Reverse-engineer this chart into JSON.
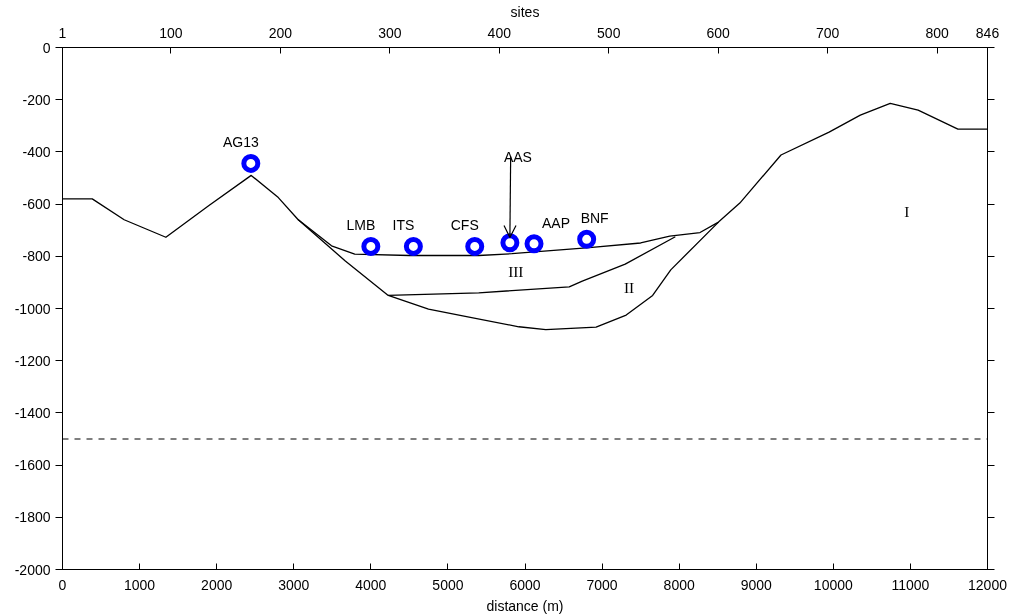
{
  "chart_data": {
    "type": "line",
    "xlabel": "distance (m)",
    "x2label": "sites",
    "xlim": [
      0,
      12000
    ],
    "xticks": [
      0,
      1000,
      2000,
      3000,
      4000,
      5000,
      6000,
      7000,
      8000,
      9000,
      10000,
      11000,
      12000
    ],
    "x2lim": [
      1,
      846
    ],
    "x2ticks": [
      1,
      100,
      200,
      300,
      400,
      500,
      600,
      700,
      800,
      846
    ],
    "ylim": [
      -2000,
      0
    ],
    "yticks": [
      -2000,
      -1800,
      -1600,
      -1400,
      -1200,
      -1000,
      -800,
      -600,
      -400,
      -200,
      0
    ],
    "grid": false,
    "line_style": "solid",
    "series": [
      {
        "color": "#000000",
        "x": [
          0,
          386,
          800,
          1341,
          1900,
          2448,
          2800,
          3055,
          3490,
          3791,
          4500,
          5400,
          5830,
          6834,
          7500,
          7878,
          8270,
          8510,
          8787,
          9321,
          9945,
          10350,
          10738,
          11100,
          11616,
          12000
        ],
        "values": [
          -580,
          -580,
          -660,
          -727,
          -605,
          -490,
          -575,
          -659,
          -760,
          -792,
          -797,
          -797,
          -790,
          -767,
          -749,
          -723,
          -709,
          -669,
          -596,
          -412,
          -324,
          -259,
          -214,
          -240,
          -313,
          -313
        ]
      },
      {
        "color": "#000000",
        "x": [
          3055,
          3665,
          4226,
          4748,
          5225,
          5920,
          6270,
          6922,
          7313,
          7656,
          7891,
          8510
        ],
        "values": [
          -659,
          -817,
          -950,
          -1002,
          -1030,
          -1070,
          -1081,
          -1071,
          -1025,
          -950,
          -852,
          -669
        ]
      },
      {
        "color": "#000000",
        "x": [
          4226,
          5400,
          6574,
          6743,
          7300,
          7950
        ],
        "values": [
          -950,
          -940,
          -917,
          -895,
          -830,
          -725
        ]
      },
      {
        "type": "scatter",
        "marker": "circle",
        "color": "#0000ff",
        "x": [
          2443,
          4000,
          4552,
          5348,
          5804,
          6117,
          6800
        ],
        "values": [
          -444,
          -762,
          -762,
          -762,
          -748,
          -752,
          -735
        ]
      }
    ],
    "ref_lines": [
      {
        "axis": "y",
        "value": -1500,
        "line_style": "dashed",
        "color": "#000000"
      }
    ],
    "annotations": [
      {
        "text": "AG13",
        "x": 2443,
        "y": -444
      },
      {
        "text": "LMB",
        "x": 4000,
        "y": -762
      },
      {
        "text": "ITS",
        "x": 4552,
        "y": -762
      },
      {
        "text": "CFS",
        "x": 5348,
        "y": -762
      },
      {
        "text": "AAS",
        "x": 5804,
        "y": -748
      },
      {
        "text": "AAP",
        "x": 6117,
        "y": -752
      },
      {
        "text": "BNF",
        "x": 6800,
        "y": -735
      },
      "I",
      "II",
      "III"
    ]
  }
}
